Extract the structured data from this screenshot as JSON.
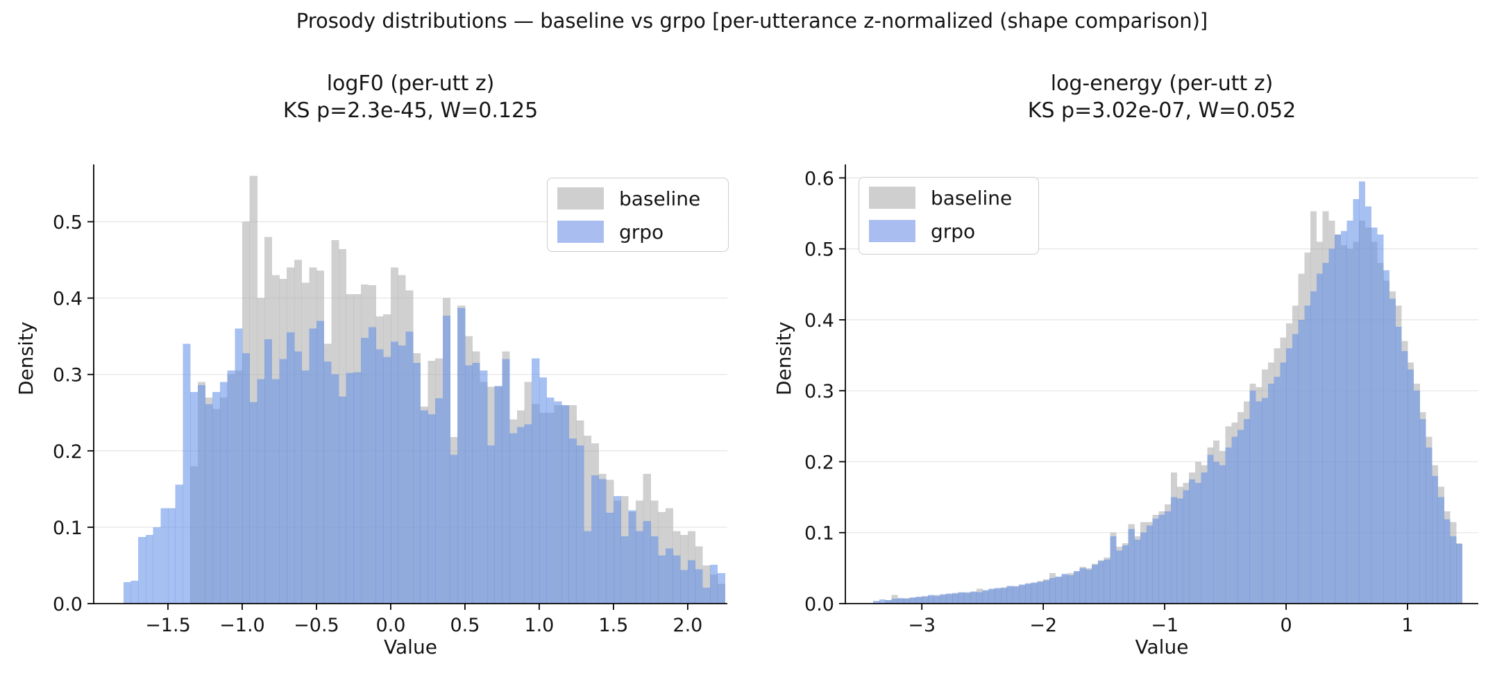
{
  "figure_title": "Prosody distributions — baseline vs grpo  [per-utterance z-normalized (shape comparison)]",
  "chart_data": {
    "type": "bar",
    "subtype": "overlaid-histograms",
    "title": "Prosody distributions — baseline vs grpo  [per-utterance z-normalized (shape comparison)]",
    "legend_position": "upper-right (left plot), upper-left (right plot)",
    "grid": "horizontal only, light gray",
    "colors": {
      "baseline_bar": "rgba(170,170,170,0.55)",
      "grpo_bar": "rgba(95,140,231,0.55)",
      "gridline": "#e6e6e6",
      "axis": "#000000"
    },
    "plots": [
      {
        "title": "logF0 (per-utt z)",
        "subtitle": "KS p=2.3e-45, W=0.125",
        "xlabel": "Value",
        "ylabel": "Density",
        "xlim": [
          -2.0,
          2.267
        ],
        "ymax": 0.575,
        "xticks": {
          "values": [
            -1.5,
            -1.0,
            -0.5,
            0.0,
            0.5,
            1.0,
            1.5,
            2.0
          ],
          "labels": [
            "−1.5",
            "−1.0",
            "−0.5",
            "0.0",
            "0.5",
            "1.0",
            "1.5",
            "2.0"
          ]
        },
        "yticks": {
          "values": [
            0.0,
            0.1,
            0.2,
            0.3,
            0.4,
            0.5
          ],
          "labels": [
            "0.0",
            "0.1",
            "0.2",
            "0.3",
            "0.4",
            "0.5"
          ]
        },
        "series": [
          {
            "name": "baseline",
            "color": "rgba(170,170,170,0.55)",
            "bin_start": -1.35,
            "bin_width": 0.05,
            "values": [
              0.18,
              0.29,
              0.27,
              0.255,
              0.27,
              0.3,
              0.305,
              0.5,
              0.56,
              0.4,
              0.48,
              0.43,
              0.425,
              0.44,
              0.45,
              0.42,
              0.44,
              0.436,
              0.34,
              0.476,
              0.464,
              0.405,
              0.405,
              0.418,
              0.417,
              0.376,
              0.379,
              0.44,
              0.43,
              0.41,
              0.328,
              0.258,
              0.318,
              0.321,
              0.4,
              0.218,
              0.39,
              0.35,
              0.33,
              0.29,
              0.284,
              0.285,
              0.33,
              0.241,
              0.253,
              0.29,
              0.261,
              0.25,
              0.25,
              0.26,
              0.26,
              0.26,
              0.24,
              0.22,
              0.21,
              0.17,
              0.162,
              0.135,
              0.141,
              0.12,
              0.135,
              0.17,
              0.135,
              0.12,
              0.125,
              0.095,
              0.09,
              0.095,
              0.075,
              0.05,
              0.038,
              0.026
            ]
          },
          {
            "name": "grpo",
            "color": "rgba(95,140,231,0.55)",
            "bin_start": -1.8,
            "bin_width": 0.05,
            "values": [
              0.028,
              0.03,
              0.087,
              0.09,
              0.1,
              0.125,
              0.125,
              0.156,
              0.34,
              0.277,
              0.286,
              0.261,
              0.277,
              0.29,
              0.305,
              0.36,
              0.328,
              0.264,
              0.294,
              0.346,
              0.294,
              0.32,
              0.355,
              0.33,
              0.305,
              0.36,
              0.37,
              0.317,
              0.3,
              0.271,
              0.302,
              0.303,
              0.348,
              0.362,
              0.333,
              0.323,
              0.343,
              0.338,
              0.356,
              0.315,
              0.253,
              0.248,
              0.269,
              0.377,
              0.195,
              0.387,
              0.312,
              0.315,
              0.305,
              0.207,
              0.285,
              0.32,
              0.223,
              0.231,
              0.235,
              0.321,
              0.296,
              0.27,
              0.265,
              0.26,
              0.216,
              0.207,
              0.095,
              0.168,
              0.163,
              0.119,
              0.141,
              0.088,
              0.122,
              0.095,
              0.108,
              0.088,
              0.063,
              0.072,
              0.063,
              0.044,
              0.057,
              0.045,
              0.021,
              0.051,
              0.04
            ]
          }
        ]
      },
      {
        "title": "log-energy (per-utt z)",
        "subtitle": "KS p=3.02e-07, W=0.052",
        "xlabel": "Value",
        "ylabel": "Density",
        "xlim": [
          -3.63,
          1.583
        ],
        "ymax": 0.619,
        "xticks": {
          "values": [
            -3,
            -2,
            -1,
            0,
            1
          ],
          "labels": [
            "−3",
            "−2",
            "−1",
            "0",
            "1"
          ]
        },
        "yticks": {
          "values": [
            0.0,
            0.1,
            0.2,
            0.3,
            0.4,
            0.5,
            0.6
          ],
          "labels": [
            "0.0",
            "0.1",
            "0.2",
            "0.3",
            "0.4",
            "0.5",
            "0.6"
          ]
        },
        "series": [
          {
            "name": "baseline",
            "color": "rgba(170,170,170,0.55)",
            "bin_start": -3.3,
            "bin_width": 0.05,
            "values": [
              0.005,
              0.012,
              0.007,
              0.008,
              0.008,
              0.009,
              0.011,
              0.011,
              0.012,
              0.012,
              0.013,
              0.015,
              0.015,
              0.016,
              0.016,
              0.021,
              0.018,
              0.02,
              0.021,
              0.023,
              0.024,
              0.025,
              0.026,
              0.029,
              0.029,
              0.032,
              0.034,
              0.043,
              0.037,
              0.04,
              0.043,
              0.045,
              0.052,
              0.05,
              0.056,
              0.061,
              0.065,
              0.1,
              0.08,
              0.085,
              0.112,
              0.095,
              0.115,
              0.115,
              0.125,
              0.13,
              0.14,
              0.185,
              0.165,
              0.17,
              0.185,
              0.2,
              0.195,
              0.22,
              0.23,
              0.215,
              0.25,
              0.255,
              0.27,
              0.285,
              0.31,
              0.305,
              0.33,
              0.34,
              0.36,
              0.375,
              0.395,
              0.42,
              0.465,
              0.495,
              0.553,
              0.51,
              0.553,
              0.54,
              0.52,
              0.505,
              0.5,
              0.51,
              0.54,
              0.53,
              0.51,
              0.48,
              0.455,
              0.44,
              0.42,
              0.37,
              0.34,
              0.31,
              0.27,
              0.235,
              0.195,
              0.165,
              0.13,
              0.115,
              0.085
            ]
          },
          {
            "name": "grpo",
            "color": "rgba(95,140,231,0.55)",
            "bin_start": -3.4,
            "bin_width": 0.05,
            "values": [
              0.004,
              0.006,
              0.005,
              0.007,
              0.008,
              0.007,
              0.009,
              0.01,
              0.01,
              0.012,
              0.011,
              0.013,
              0.014,
              0.014,
              0.016,
              0.015,
              0.017,
              0.016,
              0.019,
              0.021,
              0.022,
              0.022,
              0.025,
              0.024,
              0.027,
              0.028,
              0.03,
              0.031,
              0.033,
              0.036,
              0.038,
              0.042,
              0.04,
              0.046,
              0.05,
              0.048,
              0.055,
              0.06,
              0.062,
              0.095,
              0.075,
              0.082,
              0.105,
              0.09,
              0.1,
              0.11,
              0.12,
              0.125,
              0.13,
              0.15,
              0.148,
              0.16,
              0.175,
              0.17,
              0.185,
              0.21,
              0.2,
              0.195,
              0.22,
              0.235,
              0.245,
              0.26,
              0.3,
              0.285,
              0.29,
              0.31,
              0.32,
              0.34,
              0.36,
              0.38,
              0.4,
              0.42,
              0.44,
              0.465,
              0.48,
              0.5,
              0.52,
              0.525,
              0.54,
              0.57,
              0.595,
              0.56,
              0.53,
              0.52,
              0.47,
              0.43,
              0.39,
              0.356,
              0.33,
              0.3,
              0.26,
              0.22,
              0.18,
              0.15,
              0.119,
              0.095,
              0.084
            ]
          }
        ]
      }
    ]
  }
}
